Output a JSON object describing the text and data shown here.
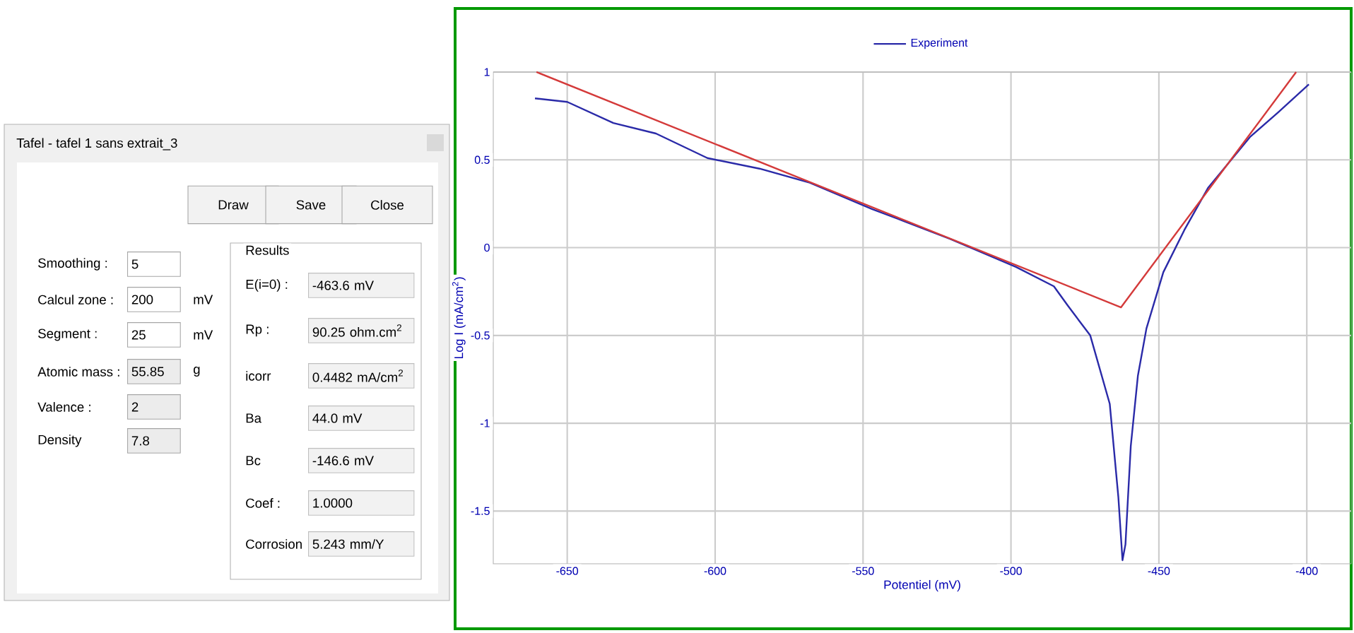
{
  "chart_data": {
    "type": "line",
    "xlabel": "Potentiel (mV)",
    "ylabel": "Log I (mA/cm$^{2}$)",
    "xlim": [
      -675,
      -385
    ],
    "ylim": [
      -1.8,
      1.0
    ],
    "xticks": [
      -650,
      -600,
      -550,
      -500,
      -450,
      -400
    ],
    "yticks": [
      -1.5,
      -1,
      -0.5,
      0,
      0.5,
      1
    ],
    "grid": true,
    "legend": "top",
    "series": [
      {
        "name": "Experiment",
        "color": "#2a2aa8",
        "x": [
          -660.9,
          -650,
          -634.4,
          -620,
          -602.6,
          -585,
          -568,
          -547,
          -536,
          -520.6,
          -498.3,
          -485.5,
          -480.8,
          -473.2,
          -466.6,
          -463.7,
          -462.3,
          -461.3,
          -459.5,
          -457.1,
          -454.2,
          -448.5,
          -441.4,
          -433.4,
          -419.2,
          -409.7,
          -399.3
        ],
        "values": [
          0.85,
          0.83,
          0.71,
          0.65,
          0.51,
          0.45,
          0.37,
          0.22,
          0.15,
          0.05,
          -0.11,
          -0.22,
          -0.33,
          -0.5,
          -0.89,
          -1.42,
          -1.78,
          -1.69,
          -1.13,
          -0.73,
          -0.46,
          -0.14,
          0.1,
          0.34,
          0.63,
          0.77,
          0.93
        ]
      },
      {
        "color": "#d43a3a",
        "x": [
          -660.4,
          -462.8,
          -403.6
        ],
        "values": [
          1.0,
          -0.34,
          1.0
        ]
      }
    ],
    "annotations": [
      "Tafel - tafel 1 sans extrait_3",
      "Draw",
      "Save",
      "Close",
      "Smoothing :",
      "5",
      "Calcul zone :",
      "200",
      "mV",
      "Segment :",
      "25",
      "mV",
      "Atomic mass :",
      "55.85",
      "g",
      "Valence :",
      "2",
      "Density",
      "7.8",
      "Results",
      "E(i=0) :",
      "-463.6 mV",
      "Rp :",
      "90.25 ohm.cm$^{2}$",
      "icorr",
      "0.4482 mA/cm$^{2}$",
      "Ba",
      "44.0 mV",
      "Bc",
      "-146.6 mV",
      "Coef :",
      "1.0000",
      "Corrosion",
      "5.243 mm/Y"
    ]
  }
}
